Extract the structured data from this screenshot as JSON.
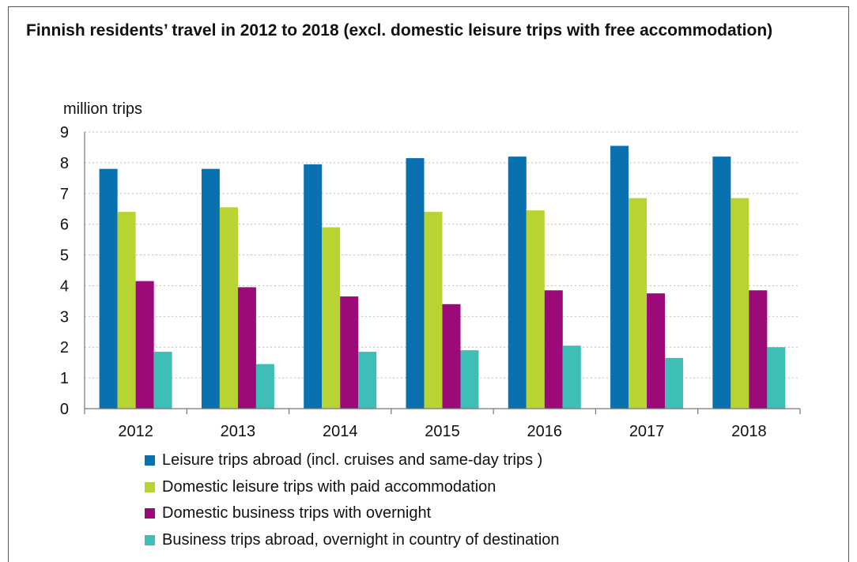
{
  "chart_data": {
    "type": "bar",
    "title": "Finnish residents’ travel in 2012 to 2018 (excl. domestic leisure trips with free accommodation)",
    "ylabel": "million trips",
    "xlabel": "",
    "ylim": [
      0,
      9
    ],
    "yticks": [
      "0",
      "1",
      "2",
      "3",
      "4",
      "5",
      "6",
      "7",
      "8",
      "9"
    ],
    "grid": "horizontal dotted",
    "legend_position": "bottom",
    "categories": [
      "2012",
      "2013",
      "2014",
      "2015",
      "2016",
      "2017",
      "2018"
    ],
    "series": [
      {
        "name": "Leisure trips abroad (incl. cruises and same-day trips )",
        "color": "#0a71b0",
        "values": [
          7.8,
          7.8,
          7.95,
          8.15,
          8.2,
          8.55,
          8.2
        ]
      },
      {
        "name": "Domestic leisure trips with paid accommodation",
        "color": "#b7d433",
        "values": [
          6.4,
          6.55,
          5.9,
          6.4,
          6.45,
          6.85,
          6.85
        ]
      },
      {
        "name": "Domestic business trips with overnight",
        "color": "#9c0a78",
        "values": [
          4.15,
          3.95,
          3.65,
          3.4,
          3.85,
          3.75,
          3.85
        ]
      },
      {
        "name": "Business trips abroad, overnight in country of destination",
        "color": "#3dbfb8",
        "values": [
          1.85,
          1.45,
          1.85,
          1.9,
          2.05,
          1.65,
          2.0
        ]
      }
    ]
  }
}
